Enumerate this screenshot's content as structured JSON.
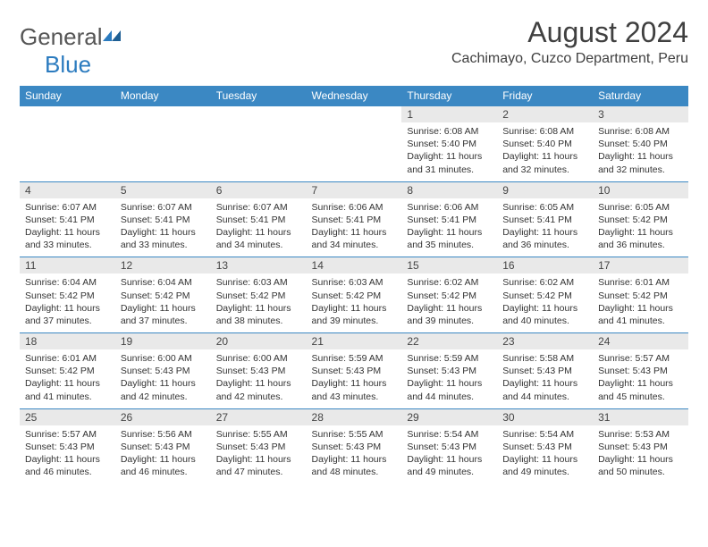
{
  "logo": {
    "general": "General",
    "blue": "Blue"
  },
  "title": "August 2024",
  "location": "Cachimayo, Cuzco Department, Peru",
  "colors": {
    "header_bg": "#3b88c3",
    "header_text": "#ffffff",
    "daynum_bg": "#e9e9e9",
    "border": "#3b88c3",
    "text": "#333333",
    "title_text": "#404040",
    "logo_gray": "#555555",
    "logo_blue": "#2b7bbf"
  },
  "weekdays": [
    "Sunday",
    "Monday",
    "Tuesday",
    "Wednesday",
    "Thursday",
    "Friday",
    "Saturday"
  ],
  "weeks": [
    [
      null,
      null,
      null,
      null,
      {
        "d": "1",
        "sr": "6:08 AM",
        "ss": "5:40 PM",
        "dl": "11 hours and 31 minutes."
      },
      {
        "d": "2",
        "sr": "6:08 AM",
        "ss": "5:40 PM",
        "dl": "11 hours and 32 minutes."
      },
      {
        "d": "3",
        "sr": "6:08 AM",
        "ss": "5:40 PM",
        "dl": "11 hours and 32 minutes."
      }
    ],
    [
      {
        "d": "4",
        "sr": "6:07 AM",
        "ss": "5:41 PM",
        "dl": "11 hours and 33 minutes."
      },
      {
        "d": "5",
        "sr": "6:07 AM",
        "ss": "5:41 PM",
        "dl": "11 hours and 33 minutes."
      },
      {
        "d": "6",
        "sr": "6:07 AM",
        "ss": "5:41 PM",
        "dl": "11 hours and 34 minutes."
      },
      {
        "d": "7",
        "sr": "6:06 AM",
        "ss": "5:41 PM",
        "dl": "11 hours and 34 minutes."
      },
      {
        "d": "8",
        "sr": "6:06 AM",
        "ss": "5:41 PM",
        "dl": "11 hours and 35 minutes."
      },
      {
        "d": "9",
        "sr": "6:05 AM",
        "ss": "5:41 PM",
        "dl": "11 hours and 36 minutes."
      },
      {
        "d": "10",
        "sr": "6:05 AM",
        "ss": "5:42 PM",
        "dl": "11 hours and 36 minutes."
      }
    ],
    [
      {
        "d": "11",
        "sr": "6:04 AM",
        "ss": "5:42 PM",
        "dl": "11 hours and 37 minutes."
      },
      {
        "d": "12",
        "sr": "6:04 AM",
        "ss": "5:42 PM",
        "dl": "11 hours and 37 minutes."
      },
      {
        "d": "13",
        "sr": "6:03 AM",
        "ss": "5:42 PM",
        "dl": "11 hours and 38 minutes."
      },
      {
        "d": "14",
        "sr": "6:03 AM",
        "ss": "5:42 PM",
        "dl": "11 hours and 39 minutes."
      },
      {
        "d": "15",
        "sr": "6:02 AM",
        "ss": "5:42 PM",
        "dl": "11 hours and 39 minutes."
      },
      {
        "d": "16",
        "sr": "6:02 AM",
        "ss": "5:42 PM",
        "dl": "11 hours and 40 minutes."
      },
      {
        "d": "17",
        "sr": "6:01 AM",
        "ss": "5:42 PM",
        "dl": "11 hours and 41 minutes."
      }
    ],
    [
      {
        "d": "18",
        "sr": "6:01 AM",
        "ss": "5:42 PM",
        "dl": "11 hours and 41 minutes."
      },
      {
        "d": "19",
        "sr": "6:00 AM",
        "ss": "5:43 PM",
        "dl": "11 hours and 42 minutes."
      },
      {
        "d": "20",
        "sr": "6:00 AM",
        "ss": "5:43 PM",
        "dl": "11 hours and 42 minutes."
      },
      {
        "d": "21",
        "sr": "5:59 AM",
        "ss": "5:43 PM",
        "dl": "11 hours and 43 minutes."
      },
      {
        "d": "22",
        "sr": "5:59 AM",
        "ss": "5:43 PM",
        "dl": "11 hours and 44 minutes."
      },
      {
        "d": "23",
        "sr": "5:58 AM",
        "ss": "5:43 PM",
        "dl": "11 hours and 44 minutes."
      },
      {
        "d": "24",
        "sr": "5:57 AM",
        "ss": "5:43 PM",
        "dl": "11 hours and 45 minutes."
      }
    ],
    [
      {
        "d": "25",
        "sr": "5:57 AM",
        "ss": "5:43 PM",
        "dl": "11 hours and 46 minutes."
      },
      {
        "d": "26",
        "sr": "5:56 AM",
        "ss": "5:43 PM",
        "dl": "11 hours and 46 minutes."
      },
      {
        "d": "27",
        "sr": "5:55 AM",
        "ss": "5:43 PM",
        "dl": "11 hours and 47 minutes."
      },
      {
        "d": "28",
        "sr": "5:55 AM",
        "ss": "5:43 PM",
        "dl": "11 hours and 48 minutes."
      },
      {
        "d": "29",
        "sr": "5:54 AM",
        "ss": "5:43 PM",
        "dl": "11 hours and 49 minutes."
      },
      {
        "d": "30",
        "sr": "5:54 AM",
        "ss": "5:43 PM",
        "dl": "11 hours and 49 minutes."
      },
      {
        "d": "31",
        "sr": "5:53 AM",
        "ss": "5:43 PM",
        "dl": "11 hours and 50 minutes."
      }
    ]
  ],
  "labels": {
    "sunrise": "Sunrise:",
    "sunset": "Sunset:",
    "daylight": "Daylight:"
  }
}
